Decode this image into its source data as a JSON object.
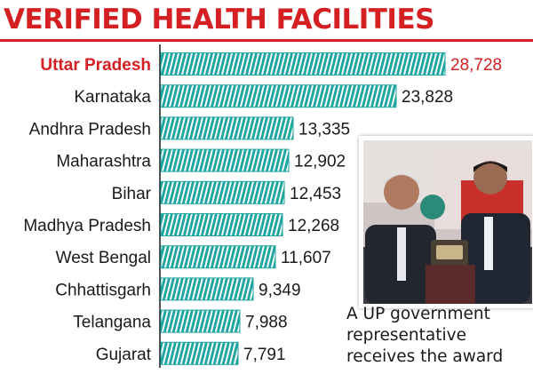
{
  "title": "VERIFIED HEALTH FACILITIES",
  "colors": {
    "title": "#d41f23",
    "bar": "#1fa6a1",
    "highlight": "#d41f23",
    "text": "#1a1a1a"
  },
  "chart_data": {
    "type": "bar",
    "orientation": "horizontal",
    "title": "VERIFIED HEALTH FACILITIES",
    "categories": [
      "Uttar Pradesh",
      "Karnataka",
      "Andhra Pradesh",
      "Maharashtra",
      "Bihar",
      "Madhya Pradesh",
      "West Bengal",
      "Chhattisgarh",
      "Telangana",
      "Gujarat"
    ],
    "values": [
      28728,
      23828,
      13335,
      12902,
      12453,
      12268,
      11607,
      9349,
      7988,
      7791
    ],
    "value_labels": [
      "28,728",
      "23,828",
      "13,335",
      "12,902",
      "12,453",
      "12,268",
      "11,607",
      "9,349",
      "7,988",
      "7,791"
    ],
    "highlight_category": "Uttar Pradesh",
    "xlim": [
      0,
      28728
    ],
    "grid": false,
    "legend": "none"
  },
  "photo": {
    "icon": "award-photo-icon"
  },
  "caption": {
    "lines": [
      "A UP government",
      "representative",
      "receives the award"
    ]
  }
}
